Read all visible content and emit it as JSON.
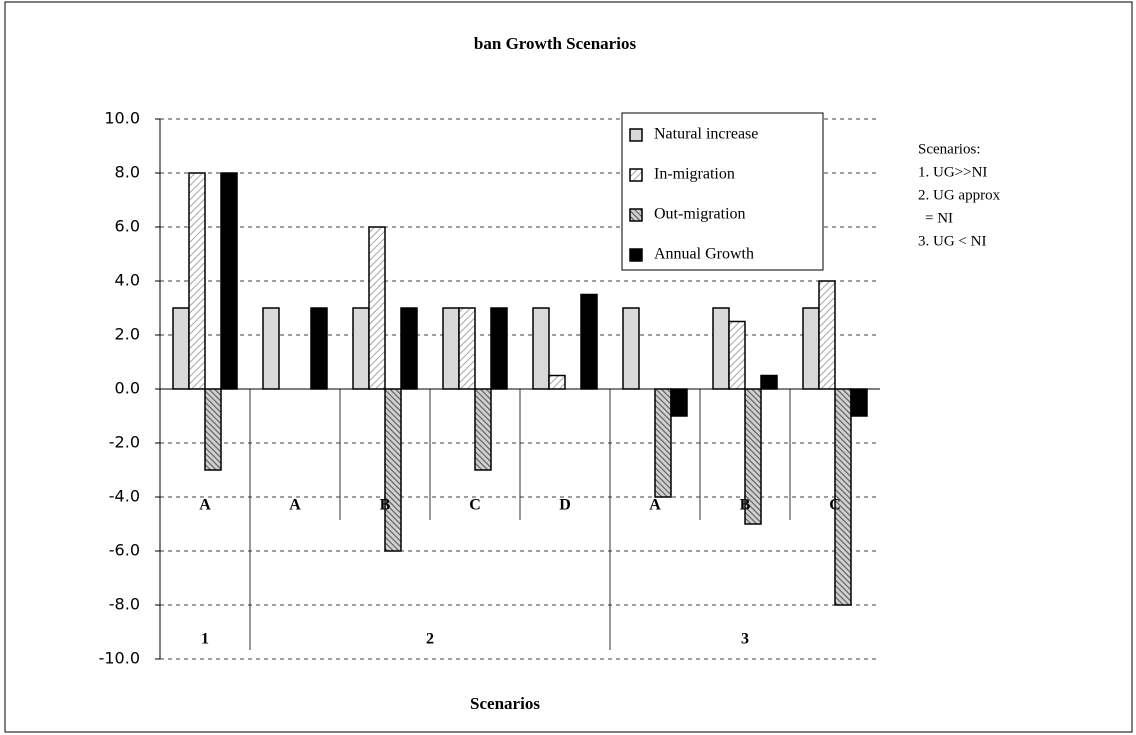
{
  "chart_data": {
    "type": "bar",
    "title": "ban Growth Scenarios",
    "x_label": "Scenarios",
    "categories": [
      "A",
      "A",
      "B",
      "C",
      "D",
      "A",
      "B",
      "C"
    ],
    "groups": [
      "1",
      "2",
      "3"
    ],
    "group_sizes": [
      1,
      4,
      3
    ],
    "series": [
      {
        "name": "Natural increase",
        "color": "#d9d9d9",
        "values": [
          3,
          3,
          3,
          3,
          3,
          3,
          3,
          3
        ]
      },
      {
        "name": "In-migration",
        "color": "#a6a6a6",
        "values": [
          8,
          0,
          6,
          3,
          0.5,
          0,
          2.5,
          4
        ]
      },
      {
        "name": "Out-migration",
        "color": "#595959",
        "values": [
          -3,
          0,
          -6,
          -3,
          0,
          -4,
          -5,
          -8
        ]
      },
      {
        "name": "Annual Growth",
        "color": "#000000",
        "values": [
          8,
          3,
          3,
          3,
          3.5,
          -1,
          0.5,
          -1
        ]
      }
    ],
    "ylim": [
      -10,
      10
    ],
    "yticks": [
      {
        "value": -10,
        "label": "-10.0"
      },
      {
        "value": -8,
        "label": "-8.0"
      },
      {
        "value": -6,
        "label": "-6.0"
      },
      {
        "value": -4,
        "label": "-4.0"
      },
      {
        "value": -2,
        "label": "-2.0"
      },
      {
        "value": 0,
        "label": "0.0"
      },
      {
        "value": 2,
        "label": "2.0"
      },
      {
        "value": 4,
        "label": "4.0"
      },
      {
        "value": 6,
        "label": "6.0"
      },
      {
        "value": 8,
        "label": "8.0"
      },
      {
        "value": 10,
        "label": "10.0"
      }
    ],
    "grid": true,
    "annotations": [
      "Scenarios:",
      "1. UG>>NI",
      "2. UG approx",
      "= NI",
      "3. UG < NI"
    ]
  }
}
